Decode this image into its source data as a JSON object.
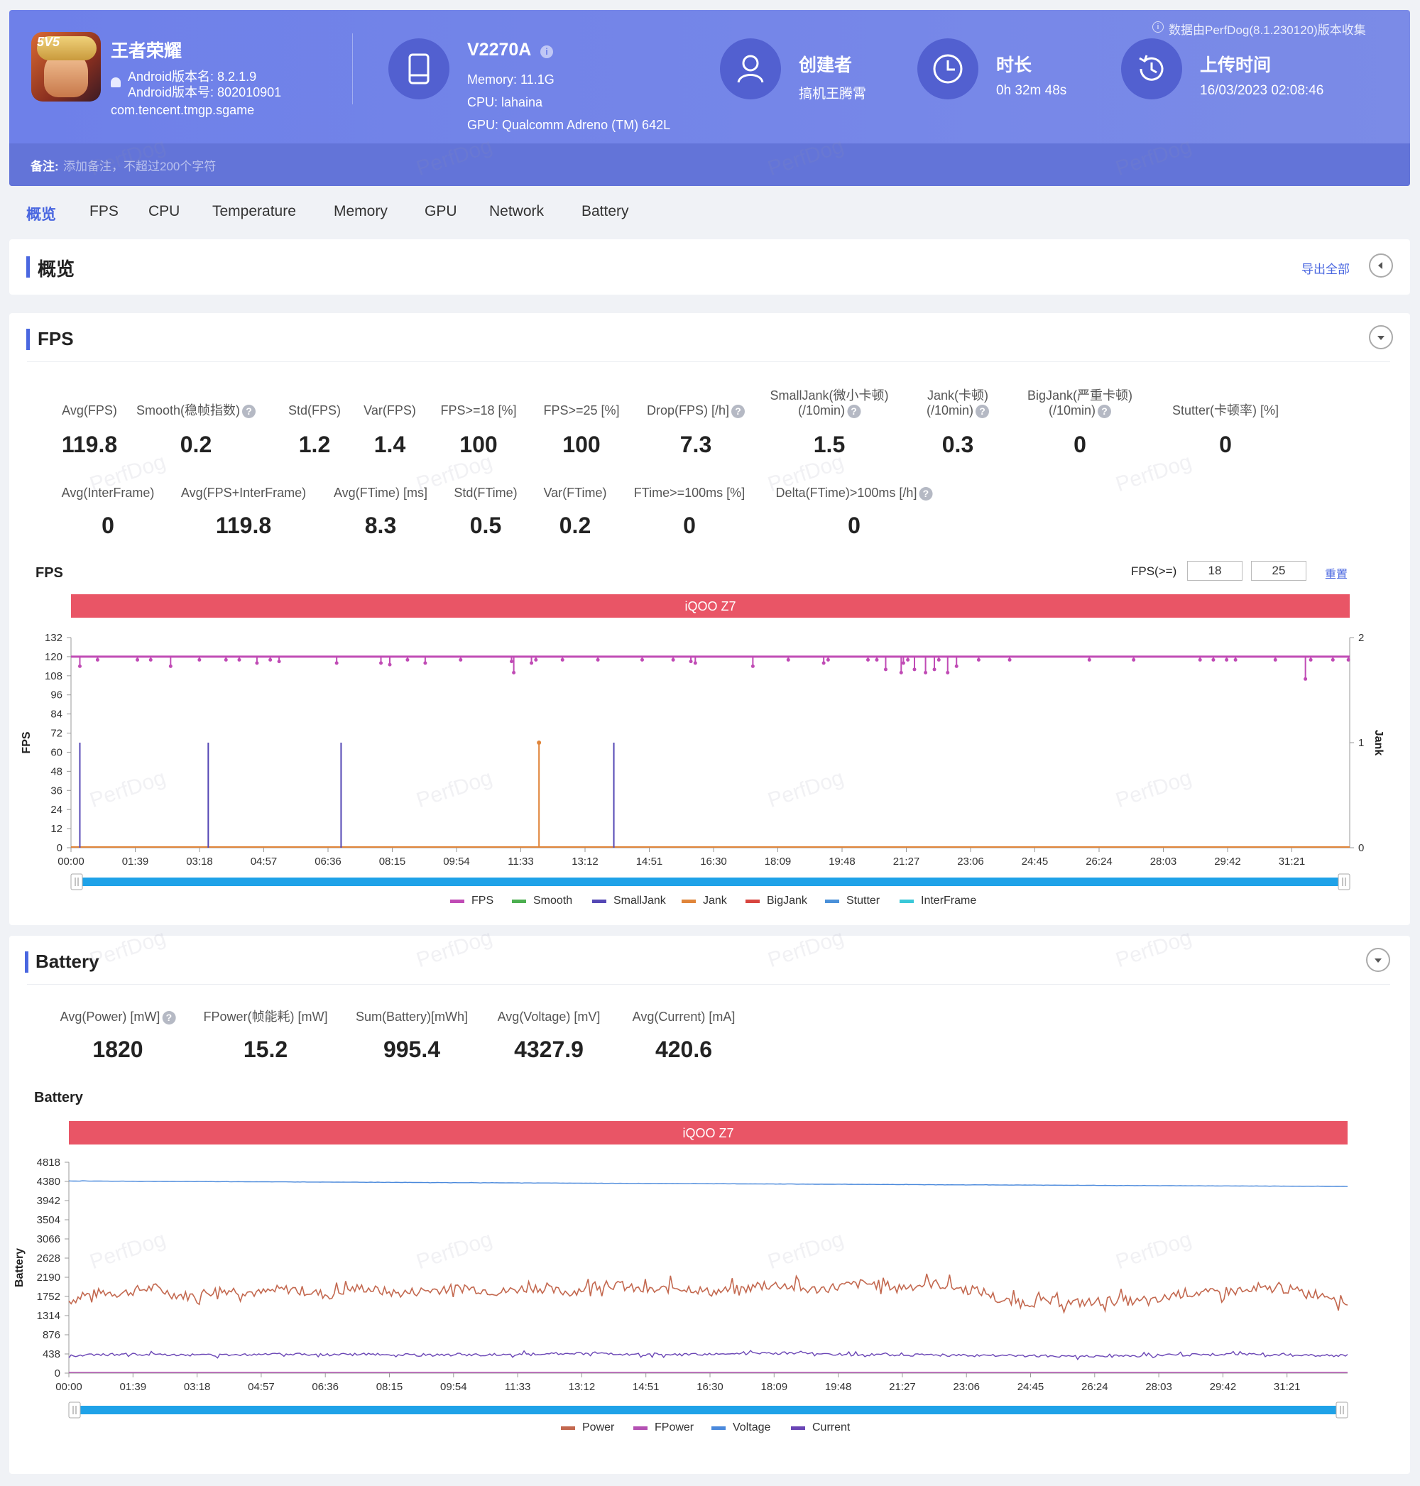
{
  "app": {
    "name": "王者荣耀",
    "version_name_label": "Android版本名: 8.2.1.9",
    "version_code_label": "Android版本号: 802010901",
    "package": "com.tencent.tmgp.sgame",
    "icon_text": "5V5"
  },
  "device": {
    "model": "V2270A",
    "memory": "Memory: 11.1G",
    "cpu": "CPU: lahaina",
    "gpu": "GPU: Qualcomm Adreno (TM) 642L"
  },
  "creator": {
    "label": "创建者",
    "value": "搞机王腾霄"
  },
  "duration": {
    "label": "时长",
    "value": "0h 32m 48s"
  },
  "upload": {
    "label": "上传时间",
    "value": "16/03/2023 02:08:46"
  },
  "collector_note": "数据由PerfDog(8.1.230120)版本收集",
  "note": {
    "label": "备注:",
    "placeholder": "添加备注，不超过200个字符"
  },
  "watermark": "PerfDog",
  "tabs": [
    "概览",
    "FPS",
    "CPU",
    "Temperature",
    "Memory",
    "GPU",
    "Network",
    "Battery"
  ],
  "overview": {
    "title": "概览",
    "export": "导出全部"
  },
  "fps_section": {
    "title": "FPS",
    "row1": [
      {
        "label": "Avg(FPS)",
        "value": "119.8"
      },
      {
        "label": "Smooth(稳帧指数)",
        "value": "0.2",
        "help": true
      },
      {
        "label": "Std(FPS)",
        "value": "1.2"
      },
      {
        "label": "Var(FPS)",
        "value": "1.4"
      },
      {
        "label": "FPS>=18 [%]",
        "value": "100"
      },
      {
        "label": "FPS>=25 [%]",
        "value": "100"
      },
      {
        "label": "Drop(FPS) [/h]",
        "value": "7.3",
        "help": true
      },
      {
        "label": "SmallJank(微小卡顿)",
        "label2": "(/10min)",
        "value": "1.5",
        "help": true
      },
      {
        "label": "Jank(卡顿)",
        "label2": "(/10min)",
        "value": "0.3",
        "help": true
      },
      {
        "label": "BigJank(严重卡顿)",
        "label2": "(/10min)",
        "value": "0",
        "help": true
      },
      {
        "label": "Stutter(卡顿率) [%]",
        "value": "0"
      }
    ],
    "row2": [
      {
        "label": "Avg(InterFrame)",
        "value": "0"
      },
      {
        "label": "Avg(FPS+InterFrame)",
        "value": "119.8"
      },
      {
        "label": "Avg(FTime) [ms]",
        "value": "8.3"
      },
      {
        "label": "Std(FTime)",
        "value": "0.5"
      },
      {
        "label": "Var(FTime)",
        "value": "0.2"
      },
      {
        "label": "FTime>=100ms [%]",
        "value": "0"
      },
      {
        "label": "Delta(FTime)>100ms [/h]",
        "value": "0",
        "help": true
      }
    ],
    "chart_title": "FPS",
    "threshold_label": "FPS(>=)",
    "threshold1": "18",
    "threshold2": "25",
    "reset": "重置"
  },
  "battery_section": {
    "title": "Battery",
    "stats": [
      {
        "label": "Avg(Power) [mW]",
        "value": "1820",
        "help": true
      },
      {
        "label": "FPower(帧能耗) [mW]",
        "value": "15.2"
      },
      {
        "label": "Sum(Battery)[mWh]",
        "value": "995.4"
      },
      {
        "label": "Avg(Voltage) [mV]",
        "value": "4327.9"
      },
      {
        "label": "Avg(Current) [mA]",
        "value": "420.6"
      }
    ],
    "chart_title": "Battery"
  },
  "chart_data": [
    {
      "type": "line",
      "banner": "iQOO Z7",
      "ylabel": "FPS",
      "y2label": "Jank",
      "ylim": [
        0,
        132
      ],
      "y_ticks": [
        "132",
        "120",
        "108",
        "96",
        "84",
        "72",
        "60",
        "48",
        "36",
        "24",
        "12",
        "0"
      ],
      "y2lim": [
        0,
        2
      ],
      "y2_ticks": [
        "2",
        "1",
        "0"
      ],
      "x_ticks": [
        "00:00",
        "01:39",
        "03:18",
        "04:57",
        "06:36",
        "08:15",
        "09:54",
        "11:33",
        "13:12",
        "14:51",
        "16:30",
        "18:09",
        "19:48",
        "21:27",
        "23:06",
        "24:45",
        "26:24",
        "28:03",
        "29:42",
        "31:21"
      ],
      "duration_s": 1968,
      "series": [
        {
          "name": "FPS",
          "color": "#c04bb5",
          "axis": "left",
          "baseline": 120,
          "dips": [
            [
              20,
              114
            ],
            [
              60,
              118
            ],
            [
              150,
              118
            ],
            [
              180,
              118
            ],
            [
              225,
              114
            ],
            [
              290,
              118
            ],
            [
              350,
              118
            ],
            [
              380,
              118
            ],
            [
              420,
              116
            ],
            [
              450,
              118
            ],
            [
              470,
              117
            ],
            [
              600,
              116
            ],
            [
              700,
              116
            ],
            [
              720,
              115
            ],
            [
              760,
              118
            ],
            [
              800,
              116
            ],
            [
              880,
              118
            ],
            [
              995,
              117
            ],
            [
              1000,
              110
            ],
            [
              1040,
              116
            ],
            [
              1050,
              118
            ],
            [
              1110,
              118
            ],
            [
              1190,
              118
            ],
            [
              1290,
              118
            ],
            [
              1360,
              118
            ],
            [
              1400,
              117
            ],
            [
              1410,
              116
            ],
            [
              1540,
              114
            ],
            [
              1620,
              118
            ],
            [
              1700,
              116
            ],
            [
              1710,
              118
            ],
            [
              1800,
              118
            ],
            [
              1820,
              118
            ],
            [
              1840,
              112
            ],
            [
              1875,
              110
            ],
            [
              1880,
              116
            ],
            [
              1890,
              118
            ],
            [
              1905,
              112
            ],
            [
              1930,
              110
            ],
            [
              1950,
              112
            ],
            [
              1960,
              118
            ],
            [
              1980,
              110
            ],
            [
              2000,
              114
            ],
            [
              2050,
              118
            ],
            [
              2120,
              118
            ],
            [
              2300,
              118
            ],
            [
              2400,
              118
            ],
            [
              2550,
              118
            ],
            [
              2580,
              118
            ],
            [
              2610,
              118
            ],
            [
              2630,
              118
            ],
            [
              2720,
              118
            ],
            [
              2788,
              106
            ],
            [
              2800,
              118
            ],
            [
              2850,
              118
            ],
            [
              2885,
              118
            ]
          ],
          "spans_total": 2888
        },
        {
          "name": "Smooth",
          "color": "#4caf50",
          "axis": "right"
        },
        {
          "name": "SmallJank",
          "color": "#5548b5",
          "axis": "right",
          "spikes": [
            [
              20,
              1
            ],
            [
              310,
              1
            ],
            [
              610,
              1
            ],
            [
              1226,
              1
            ]
          ],
          "spans_total": 2888
        },
        {
          "name": "Jank",
          "color": "#e0853a",
          "axis": "right",
          "spikes": [
            [
              1057,
              1
            ]
          ],
          "spans_total": 2888
        },
        {
          "name": "BigJank",
          "color": "#d8453f",
          "axis": "right"
        },
        {
          "name": "Stutter",
          "color": "#4a90d9",
          "axis": "right"
        },
        {
          "name": "InterFrame",
          "color": "#3ac8d8",
          "axis": "right"
        }
      ]
    },
    {
      "type": "line",
      "banner": "iQOO Z7",
      "ylabel": "Battery",
      "ylim": [
        0,
        4818
      ],
      "y_ticks": [
        "4818",
        "4380",
        "3942",
        "3504",
        "3066",
        "2628",
        "2190",
        "1752",
        "1314",
        "876",
        "438",
        "0"
      ],
      "x_ticks": [
        "00:00",
        "01:39",
        "03:18",
        "04:57",
        "06:36",
        "08:15",
        "09:54",
        "11:33",
        "13:12",
        "14:51",
        "16:30",
        "18:09",
        "19:48",
        "21:27",
        "23:06",
        "24:45",
        "26:24",
        "28:03",
        "29:42",
        "31:21"
      ],
      "series": [
        {
          "name": "Power",
          "color": "#c3684f",
          "values": [
            1650,
            1780,
            1850,
            1820,
            1900,
            1950,
            1800,
            1760,
            1850,
            1900,
            1880,
            1820,
            1900,
            1920,
            1850,
            1780,
            1900,
            1950,
            1880,
            1820,
            1860,
            1900,
            1920,
            1950,
            1900,
            1850,
            1920,
            1960,
            1880,
            1850,
            1950,
            2050,
            1980,
            1900,
            1880,
            1960,
            1940,
            1850,
            1880,
            1920,
            1980,
            2020,
            1950,
            1900,
            1950,
            2000,
            2050,
            2020,
            1960,
            2000,
            2050,
            1980,
            1900,
            1850,
            1650,
            1600,
            1620,
            1640,
            1600,
            1620,
            1650,
            1660,
            1620,
            1640,
            1800,
            1850,
            1820,
            1880,
            1860,
            1900,
            1950,
            1880,
            1820,
            1780,
            1600
          ]
        },
        {
          "name": "FPower",
          "color": "#b451b3",
          "values": [
            15,
            15,
            15,
            15,
            15,
            15,
            15,
            15,
            15,
            15,
            15,
            15,
            15,
            15,
            15,
            15,
            15,
            15,
            15,
            15,
            15,
            15,
            15,
            15,
            15,
            15
          ]
        },
        {
          "name": "Voltage",
          "color": "#4a89dc",
          "values": [
            4390,
            4385,
            4380,
            4375,
            4370,
            4365,
            4360,
            4355,
            4350,
            4345,
            4340,
            4335,
            4330,
            4325,
            4320,
            4315,
            4310,
            4305,
            4300,
            4295,
            4290,
            4285,
            4280,
            4275,
            4270,
            4265
          ]
        },
        {
          "name": "Current",
          "color": "#6a45b5",
          "values": [
            400,
            430,
            420,
            410,
            440,
            420,
            430,
            410,
            420,
            440,
            450,
            430,
            420,
            440,
            460,
            430,
            420,
            410,
            400,
            390,
            380,
            400,
            420,
            430,
            410,
            400
          ]
        }
      ]
    }
  ]
}
